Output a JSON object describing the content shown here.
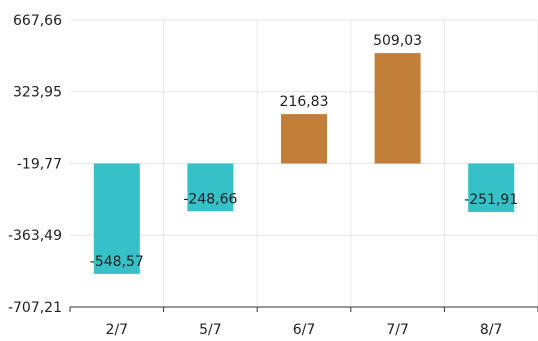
{
  "chart_data": {
    "type": "bar",
    "title": "",
    "xlabel": "",
    "ylabel": "",
    "categories": [
      "2/7",
      "5/7",
      "6/7",
      "7/7",
      "8/7"
    ],
    "values": [
      -548.57,
      -248.66,
      216.83,
      509.03,
      -251.91
    ],
    "value_labels": [
      "-548,57",
      "-248,66",
      "216,83",
      "509,03",
      "-251,91"
    ],
    "ylim": [
      -707.21,
      667.66
    ],
    "yticks": [
      -707.21,
      -363.49,
      -19.77,
      323.95,
      667.66
    ],
    "ytick_labels": [
      "-707,21",
      "-363,49",
      "-19,77",
      "323,95",
      "667,66"
    ],
    "baseline": -19.77,
    "grid": true,
    "colors": {
      "positive": "#c17f3a",
      "negative": "#36c0c8",
      "grid": "#e6e6e6",
      "axis": "#333333",
      "text": "#222222"
    }
  }
}
